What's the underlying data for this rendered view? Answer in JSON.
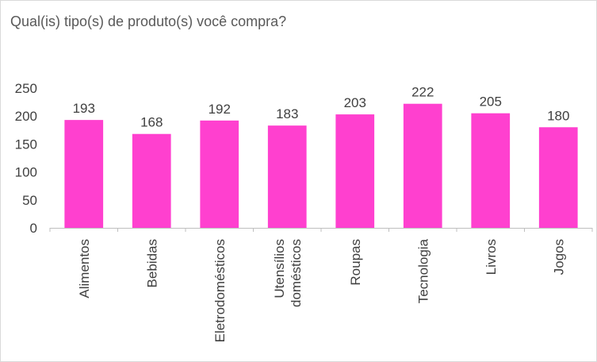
{
  "chart_data": {
    "type": "bar",
    "title": "Qual(is) tipo(s) de produto(s) você compra?",
    "categories": [
      [
        "Alimentos"
      ],
      [
        "Bebidas"
      ],
      [
        "Eletrodomésticos"
      ],
      [
        "Utensílios",
        "domésticos"
      ],
      [
        "Roupas"
      ],
      [
        "Tecnologia"
      ],
      [
        "Livros"
      ],
      [
        "Jogos"
      ]
    ],
    "values": [
      193,
      168,
      192,
      183,
      203,
      222,
      205,
      180
    ],
    "yticks": [
      "0",
      "50",
      "100",
      "150",
      "200",
      "250"
    ],
    "ylim": [
      0,
      250
    ],
    "grid": false,
    "bar_color": "#ff40cf",
    "axis_color": "#bfbfbf"
  }
}
